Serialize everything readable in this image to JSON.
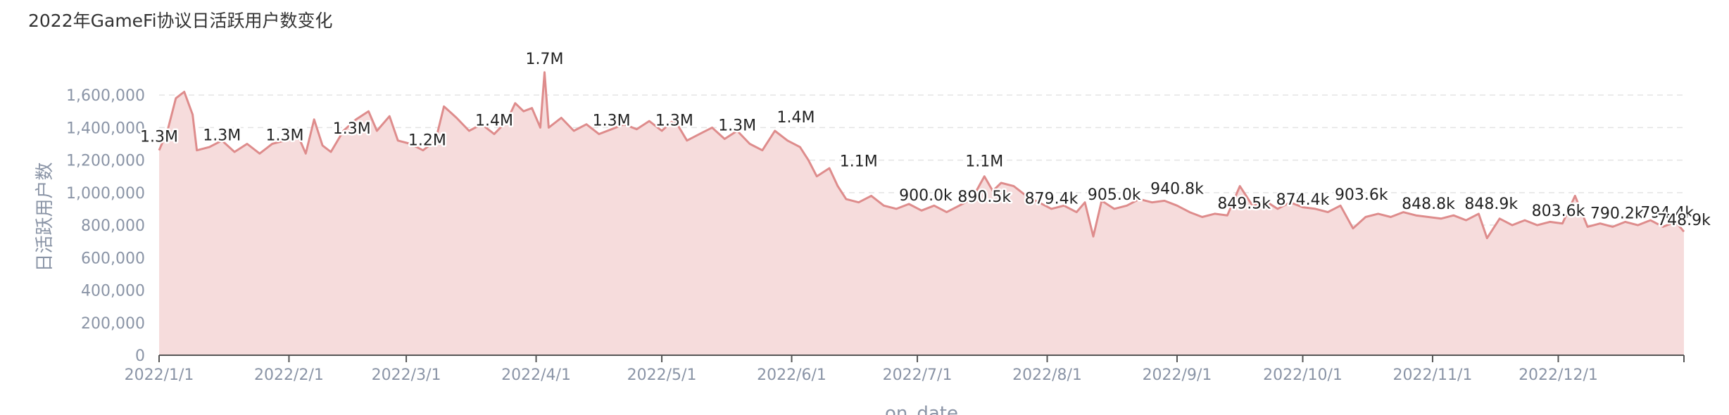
{
  "chart_data": {
    "type": "area",
    "title": "2022年GameFi协议日活跃用户数变化",
    "xlabel": "on_date",
    "ylabel": "日活跃用户数",
    "ylim": [
      0,
      1700000
    ],
    "yticks": [
      0,
      200000,
      400000,
      600000,
      800000,
      1000000,
      1200000,
      1400000,
      1600000
    ],
    "ytick_labels": [
      "0",
      "200,000",
      "400,000",
      "600,000",
      "800,000",
      "1,000,000",
      "1,200,000",
      "1,400,000",
      "1,600,000"
    ],
    "xlim": [
      "2022-01-01",
      "2022-12-31"
    ],
    "xticks": [
      "2022-01-01",
      "2022-02-01",
      "2022-03-01",
      "2022-04-01",
      "2022-05-01",
      "2022-06-01",
      "2022-07-01",
      "2022-08-01",
      "2022-09-01",
      "2022-10-01",
      "2022-11-01",
      "2022-12-01"
    ],
    "xtick_labels": [
      "2022/1/1",
      "2022/2/1",
      "2022/3/1",
      "2022/4/1",
      "2022/5/1",
      "2022/6/1",
      "2022/7/1",
      "2022/8/1",
      "2022/9/1",
      "2022/10/1",
      "2022/11/1",
      "2022/12/1"
    ],
    "grid": true,
    "legend": "none",
    "colors": {
      "line": "#de8c8c",
      "fill": "#f6dcdc",
      "grid": "#e4e4e4",
      "axis": "#555555"
    },
    "series": [
      {
        "points": [
          [
            "2022-01-01",
            1260000
          ],
          [
            "2022-01-03",
            1380000
          ],
          [
            "2022-01-05",
            1580000
          ],
          [
            "2022-01-07",
            1620000
          ],
          [
            "2022-01-09",
            1480000
          ],
          [
            "2022-01-10",
            1260000
          ],
          [
            "2022-01-13",
            1280000
          ],
          [
            "2022-01-16",
            1320000
          ],
          [
            "2022-01-19",
            1250000
          ],
          [
            "2022-01-22",
            1300000
          ],
          [
            "2022-01-25",
            1240000
          ],
          [
            "2022-01-28",
            1300000
          ],
          [
            "2022-01-31",
            1320000
          ],
          [
            "2022-02-03",
            1360000
          ],
          [
            "2022-02-05",
            1240000
          ],
          [
            "2022-02-07",
            1450000
          ],
          [
            "2022-02-09",
            1290000
          ],
          [
            "2022-02-11",
            1250000
          ],
          [
            "2022-02-14",
            1380000
          ],
          [
            "2022-02-17",
            1450000
          ],
          [
            "2022-02-20",
            1500000
          ],
          [
            "2022-02-22",
            1380000
          ],
          [
            "2022-02-25",
            1470000
          ],
          [
            "2022-02-27",
            1320000
          ],
          [
            "2022-03-02",
            1300000
          ],
          [
            "2022-03-05",
            1260000
          ],
          [
            "2022-03-08",
            1320000
          ],
          [
            "2022-03-10",
            1530000
          ],
          [
            "2022-03-13",
            1460000
          ],
          [
            "2022-03-16",
            1380000
          ],
          [
            "2022-03-19",
            1420000
          ],
          [
            "2022-03-22",
            1360000
          ],
          [
            "2022-03-25",
            1440000
          ],
          [
            "2022-03-27",
            1550000
          ],
          [
            "2022-03-29",
            1500000
          ],
          [
            "2022-03-31",
            1520000
          ],
          [
            "2022-04-02",
            1400000
          ],
          [
            "2022-04-03",
            1740000
          ],
          [
            "2022-04-04",
            1400000
          ],
          [
            "2022-04-07",
            1460000
          ],
          [
            "2022-04-10",
            1380000
          ],
          [
            "2022-04-13",
            1420000
          ],
          [
            "2022-04-16",
            1360000
          ],
          [
            "2022-04-19",
            1390000
          ],
          [
            "2022-04-22",
            1420000
          ],
          [
            "2022-04-25",
            1390000
          ],
          [
            "2022-04-28",
            1440000
          ],
          [
            "2022-05-01",
            1380000
          ],
          [
            "2022-05-04",
            1450000
          ],
          [
            "2022-05-07",
            1320000
          ],
          [
            "2022-05-10",
            1360000
          ],
          [
            "2022-05-13",
            1400000
          ],
          [
            "2022-05-16",
            1330000
          ],
          [
            "2022-05-19",
            1380000
          ],
          [
            "2022-05-22",
            1300000
          ],
          [
            "2022-05-25",
            1260000
          ],
          [
            "2022-05-28",
            1380000
          ],
          [
            "2022-05-31",
            1320000
          ],
          [
            "2022-06-03",
            1280000
          ],
          [
            "2022-06-05",
            1200000
          ],
          [
            "2022-06-07",
            1100000
          ],
          [
            "2022-06-10",
            1150000
          ],
          [
            "2022-06-12",
            1040000
          ],
          [
            "2022-06-14",
            960000
          ],
          [
            "2022-06-17",
            940000
          ],
          [
            "2022-06-20",
            980000
          ],
          [
            "2022-06-23",
            920000
          ],
          [
            "2022-06-26",
            900000
          ],
          [
            "2022-06-29",
            930000
          ],
          [
            "2022-07-02",
            890000
          ],
          [
            "2022-07-05",
            920000
          ],
          [
            "2022-07-08",
            880000
          ],
          [
            "2022-07-11",
            920000
          ],
          [
            "2022-07-14",
            960000
          ],
          [
            "2022-07-17",
            1100000
          ],
          [
            "2022-07-19",
            1010000
          ],
          [
            "2022-07-21",
            1060000
          ],
          [
            "2022-07-24",
            1040000
          ],
          [
            "2022-07-27",
            980000
          ],
          [
            "2022-07-30",
            940000
          ],
          [
            "2022-08-02",
            900000
          ],
          [
            "2022-08-05",
            920000
          ],
          [
            "2022-08-08",
            880000
          ],
          [
            "2022-08-10",
            940000
          ],
          [
            "2022-08-12",
            730000
          ],
          [
            "2022-08-14",
            950000
          ],
          [
            "2022-08-17",
            900000
          ],
          [
            "2022-08-20",
            920000
          ],
          [
            "2022-08-23",
            960000
          ],
          [
            "2022-08-26",
            940000
          ],
          [
            "2022-08-29",
            950000
          ],
          [
            "2022-09-01",
            920000
          ],
          [
            "2022-09-04",
            880000
          ],
          [
            "2022-09-07",
            850000
          ],
          [
            "2022-09-10",
            870000
          ],
          [
            "2022-09-13",
            860000
          ],
          [
            "2022-09-16",
            1040000
          ],
          [
            "2022-09-19",
            920000
          ],
          [
            "2022-09-22",
            950000
          ],
          [
            "2022-09-25",
            900000
          ],
          [
            "2022-09-28",
            940000
          ],
          [
            "2022-10-01",
            910000
          ],
          [
            "2022-10-04",
            900000
          ],
          [
            "2022-10-07",
            880000
          ],
          [
            "2022-10-10",
            920000
          ],
          [
            "2022-10-13",
            780000
          ],
          [
            "2022-10-16",
            850000
          ],
          [
            "2022-10-19",
            870000
          ],
          [
            "2022-10-22",
            850000
          ],
          [
            "2022-10-25",
            880000
          ],
          [
            "2022-10-28",
            860000
          ],
          [
            "2022-10-31",
            850000
          ],
          [
            "2022-11-03",
            840000
          ],
          [
            "2022-11-06",
            860000
          ],
          [
            "2022-11-09",
            830000
          ],
          [
            "2022-11-12",
            870000
          ],
          [
            "2022-11-14",
            720000
          ],
          [
            "2022-11-17",
            840000
          ],
          [
            "2022-11-20",
            800000
          ],
          [
            "2022-11-23",
            830000
          ],
          [
            "2022-11-26",
            800000
          ],
          [
            "2022-11-29",
            820000
          ],
          [
            "2022-12-02",
            810000
          ],
          [
            "2022-12-05",
            980000
          ],
          [
            "2022-12-08",
            790000
          ],
          [
            "2022-12-11",
            810000
          ],
          [
            "2022-12-14",
            790000
          ],
          [
            "2022-12-17",
            820000
          ],
          [
            "2022-12-20",
            800000
          ],
          [
            "2022-12-23",
            830000
          ],
          [
            "2022-12-26",
            790000
          ],
          [
            "2022-12-29",
            820000
          ],
          [
            "2022-12-31",
            760000
          ]
        ]
      }
    ],
    "data_labels": [
      {
        "x": "2022-01-01",
        "y": 1260000,
        "text": "1.3M"
      },
      {
        "x": "2022-01-16",
        "y": 1270000,
        "text": "1.3M"
      },
      {
        "x": "2022-01-31",
        "y": 1270000,
        "text": "1.3M"
      },
      {
        "x": "2022-02-16",
        "y": 1310000,
        "text": "1.3M"
      },
      {
        "x": "2022-03-06",
        "y": 1240000,
        "text": "1.2M"
      },
      {
        "x": "2022-03-22",
        "y": 1360000,
        "text": "1.4M"
      },
      {
        "x": "2022-04-03",
        "y": 1740000,
        "text": "1.7M"
      },
      {
        "x": "2022-04-19",
        "y": 1360000,
        "text": "1.3M"
      },
      {
        "x": "2022-05-04",
        "y": 1360000,
        "text": "1.3M"
      },
      {
        "x": "2022-05-19",
        "y": 1330000,
        "text": "1.3M"
      },
      {
        "x": "2022-06-02",
        "y": 1380000,
        "text": "1.4M"
      },
      {
        "x": "2022-06-17",
        "y": 1110000,
        "text": "1.1M"
      },
      {
        "x": "2022-07-03",
        "y": 900000,
        "text": "900.0k"
      },
      {
        "x": "2022-07-17",
        "y": 890500,
        "text": "890.5k"
      },
      {
        "x": "2022-07-17",
        "y": 1110000,
        "text": "1.1M"
      },
      {
        "x": "2022-08-02",
        "y": 879400,
        "text": "879.4k"
      },
      {
        "x": "2022-08-17",
        "y": 905000,
        "text": "905.0k"
      },
      {
        "x": "2022-09-01",
        "y": 940800,
        "text": "940.8k"
      },
      {
        "x": "2022-09-17",
        "y": 849500,
        "text": "849.5k"
      },
      {
        "x": "2022-10-01",
        "y": 874400,
        "text": "874.4k"
      },
      {
        "x": "2022-10-15",
        "y": 903600,
        "text": "903.6k"
      },
      {
        "x": "2022-10-31",
        "y": 848800,
        "text": "848.8k"
      },
      {
        "x": "2022-11-15",
        "y": 848900,
        "text": "848.9k"
      },
      {
        "x": "2022-12-01",
        "y": 803600,
        "text": "803.6k"
      },
      {
        "x": "2022-12-15",
        "y": 790200,
        "text": "790.2k"
      },
      {
        "x": "2022-12-27",
        "y": 794400,
        "text": "794.4k"
      },
      {
        "x": "2022-12-31",
        "y": 748900,
        "text": "748.9k"
      }
    ]
  }
}
